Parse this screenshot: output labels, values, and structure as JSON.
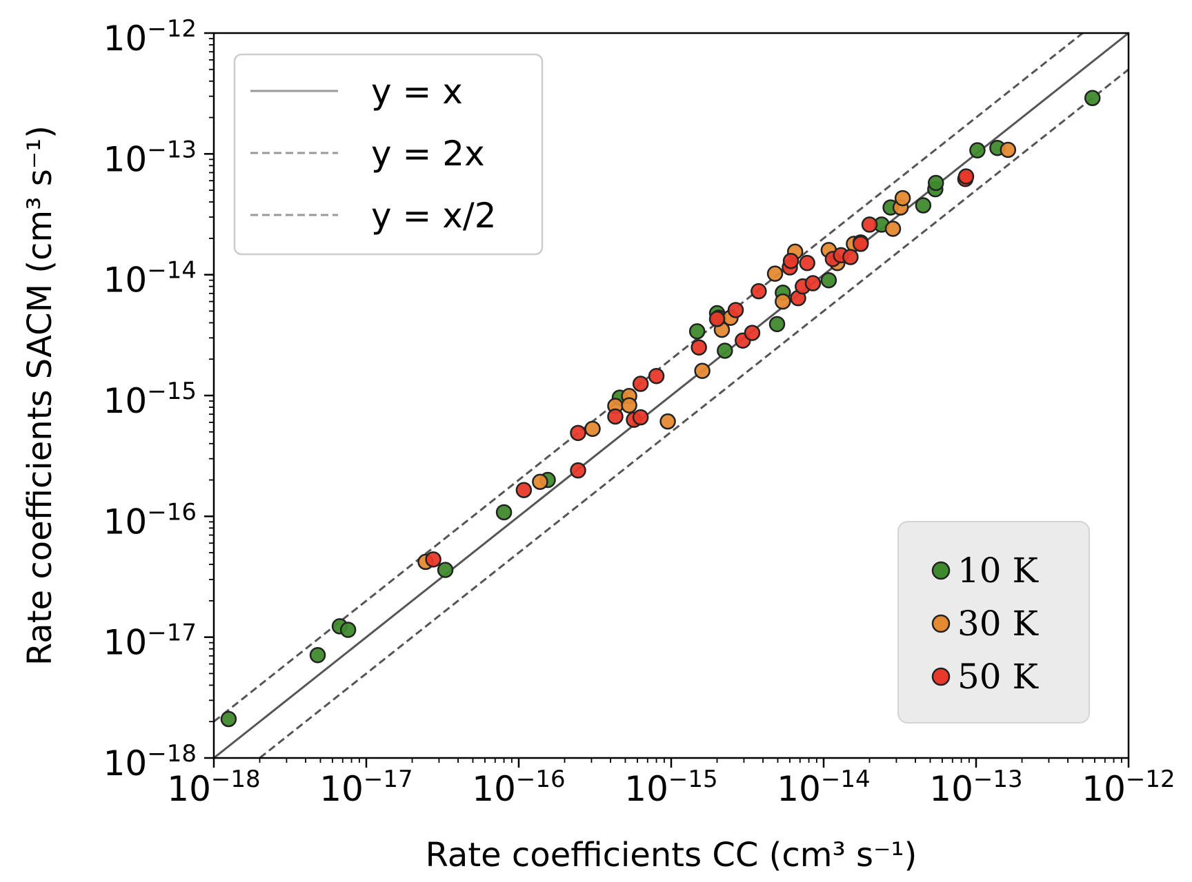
{
  "chart_data": {
    "type": "scatter",
    "xscale": "log",
    "yscale": "log",
    "xlim": [
      1e-18,
      1e-12
    ],
    "ylim": [
      1e-18,
      1e-12
    ],
    "xlabel": "Rate coefficients CC (cm³ s⁻¹)",
    "ylabel": "Rate coefficients SACM (cm³ s⁻¹)",
    "x_tick_exponents": [
      -18,
      -17,
      -16,
      -15,
      -14,
      -13,
      -12
    ],
    "y_tick_exponents": [
      -18,
      -17,
      -16,
      -15,
      -14,
      -13,
      -12
    ],
    "tick_base": "10",
    "lines": [
      {
        "name": "y = x",
        "factor": 1,
        "style": "solid",
        "color": "#555555"
      },
      {
        "name": "y = 2x",
        "factor": 2,
        "style": "dashed",
        "color": "#555555"
      },
      {
        "name": "y = x/2",
        "factor": 0.5,
        "style": "dashed",
        "color": "#555555"
      }
    ],
    "line_legend_position": "top-left",
    "series_legend_position": "bottom-right",
    "series": [
      {
        "name": "10 K",
        "color": "#3f8a2e",
        "points": [
          [
            1.25e-18,
            2.1e-18
          ],
          [
            4.8e-18,
            7.1e-18
          ],
          [
            6.7e-18,
            1.23e-17
          ],
          [
            7.6e-18,
            1.15e-17
          ],
          [
            3.3e-17,
            3.6e-17
          ],
          [
            8e-17,
            1.08e-16
          ],
          [
            1.55e-16,
            2e-16
          ],
          [
            4.6e-16,
            9.6e-16
          ],
          [
            1.48e-15,
            3.4e-15
          ],
          [
            2e-15,
            4.8e-15
          ],
          [
            2.05e-15,
            4.4e-15
          ],
          [
            2.25e-15,
            2.35e-15
          ],
          [
            4.95e-15,
            3.9e-15
          ],
          [
            5.4e-15,
            7.1e-15
          ],
          [
            1.08e-14,
            9e-15
          ],
          [
            2.4e-14,
            2.6e-14
          ],
          [
            2.75e-14,
            3.6e-14
          ],
          [
            4.5e-14,
            3.75e-14
          ],
          [
            5.4e-14,
            5.1e-14
          ],
          [
            5.45e-14,
            5.75e-14
          ],
          [
            1.02e-13,
            1.07e-13
          ],
          [
            1.38e-13,
            1.12e-13
          ],
          [
            5.8e-13,
            2.9e-13
          ]
        ]
      },
      {
        "name": "30 K",
        "color": "#e58a33",
        "points": [
          [
            2.45e-17,
            4.2e-17
          ],
          [
            1.38e-16,
            1.93e-16
          ],
          [
            3.05e-16,
            5.3e-16
          ],
          [
            4.3e-16,
            8.2e-16
          ],
          [
            5.3e-16,
            9.9e-16
          ],
          [
            5.3e-16,
            8.3e-16
          ],
          [
            9.5e-16,
            6.1e-16
          ],
          [
            1.6e-15,
            1.6e-15
          ],
          [
            2.15e-15,
            3.5e-15
          ],
          [
            2.45e-15,
            4.4e-15
          ],
          [
            4.8e-15,
            1.02e-14
          ],
          [
            5.4e-15,
            6e-15
          ],
          [
            6.5e-15,
            1.55e-14
          ],
          [
            1.08e-14,
            1.6e-14
          ],
          [
            1.23e-14,
            1.25e-14
          ],
          [
            1.58e-14,
            1.8e-14
          ],
          [
            1.75e-14,
            1.85e-14
          ],
          [
            2.85e-14,
            2.4e-14
          ],
          [
            3.2e-14,
            3.6e-14
          ],
          [
            3.3e-14,
            4.3e-14
          ],
          [
            1.62e-13,
            1.08e-13
          ]
        ]
      },
      {
        "name": "50 K",
        "color": "#e8392a",
        "points": [
          [
            2.75e-17,
            4.4e-17
          ],
          [
            1.08e-16,
            1.65e-16
          ],
          [
            2.45e-16,
            2.4e-16
          ],
          [
            2.45e-16,
            4.9e-16
          ],
          [
            4.3e-16,
            6.7e-16
          ],
          [
            5.7e-16,
            6.3e-16
          ],
          [
            6.3e-16,
            6.6e-16
          ],
          [
            6.3e-16,
            1.25e-15
          ],
          [
            8e-16,
            1.45e-15
          ],
          [
            1.52e-15,
            2.5e-15
          ],
          [
            2e-15,
            4.3e-15
          ],
          [
            2.65e-15,
            5.1e-15
          ],
          [
            2.95e-15,
            2.85e-15
          ],
          [
            3.4e-15,
            3.3e-15
          ],
          [
            3.75e-15,
            7.3e-15
          ],
          [
            6e-15,
            1.15e-14
          ],
          [
            6.1e-15,
            1.3e-14
          ],
          [
            6.8e-15,
            6.4e-15
          ],
          [
            7.3e-15,
            8e-15
          ],
          [
            7.8e-15,
            1.25e-14
          ],
          [
            8.5e-15,
            8.5e-15
          ],
          [
            1.15e-14,
            1.35e-14
          ],
          [
            1.3e-14,
            1.45e-14
          ],
          [
            1.5e-14,
            1.4e-14
          ],
          [
            1.75e-14,
            1.8e-14
          ],
          [
            2e-14,
            2.6e-14
          ],
          [
            8.5e-14,
            6.2e-14
          ],
          [
            8.6e-14,
            6.5e-14
          ]
        ]
      }
    ]
  }
}
